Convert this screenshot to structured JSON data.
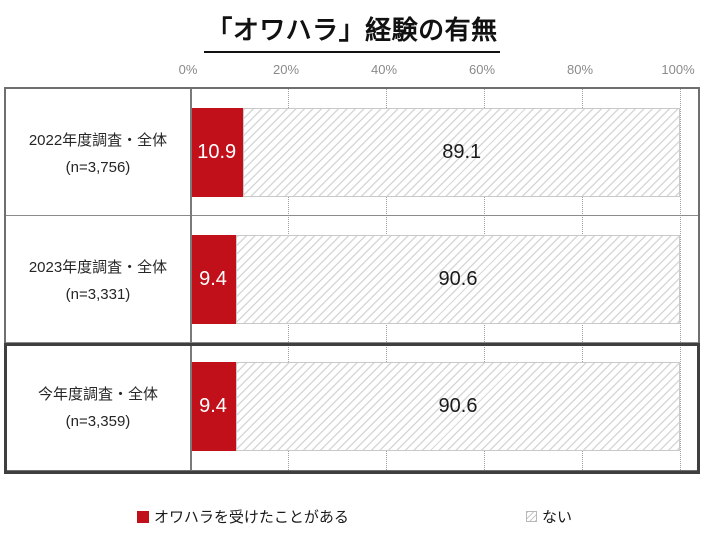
{
  "title": "「オワハラ」経験の有無",
  "axis_ticks": [
    "0%",
    "20%",
    "40%",
    "60%",
    "80%",
    "100%"
  ],
  "rows": [
    {
      "label": "2022年度調査・全体",
      "n": "(n=3,756)",
      "yes_label": "10.9",
      "no_label": "89.1",
      "highlighted": false
    },
    {
      "label": "2023年度調査・全体",
      "n": "(n=3,331)",
      "yes_label": "9.4",
      "no_label": "90.6",
      "highlighted": false
    },
    {
      "label": "今年度調査・全体",
      "n": "(n=3,359)",
      "yes_label": "9.4",
      "no_label": "90.6",
      "highlighted": true
    }
  ],
  "legend": {
    "yes_label": "オワハラを受けたことがある",
    "no_label": "ない"
  },
  "colors": {
    "accent_red": "#C2101A",
    "hatch_line": "#d8d8d8",
    "grid_line": "#9f9f9f",
    "box_border": "#6f6f6f",
    "highlight_border": "#3f3f3f",
    "tick_text": "#8a8a8a"
  },
  "chart_data": {
    "type": "bar",
    "orientation": "horizontal",
    "stacked": true,
    "title": "「オワハラ」経験の有無",
    "categories": [
      "2022年度調査・全体 (n=3,756)",
      "2023年度調査・全体 (n=3,331)",
      "今年度調査・全体 (n=3,359)"
    ],
    "series": [
      {
        "name": "オワハラを受けたことがある",
        "values": [
          10.9,
          9.4,
          9.4
        ],
        "color": "#C2101A",
        "style": "solid"
      },
      {
        "name": "ない",
        "values": [
          89.1,
          90.6,
          90.6
        ],
        "color": "#ffffff",
        "style": "diagonal-hatch"
      }
    ],
    "xlabel": "",
    "ylabel": "",
    "xlim": [
      0,
      100
    ],
    "x_tick_labels": [
      "0%",
      "20%",
      "40%",
      "60%",
      "80%",
      "100%"
    ],
    "grid": "vertical-dotted",
    "legend_position": "bottom",
    "highlighted_category_index": 2,
    "data_labels": "inside-segments"
  }
}
